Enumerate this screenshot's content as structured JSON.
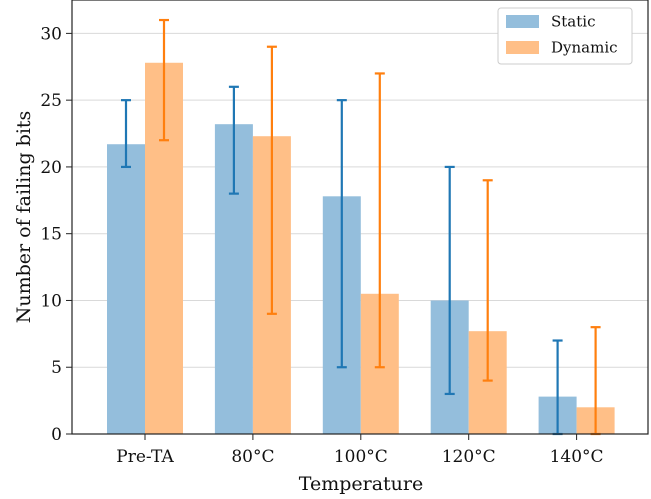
{
  "chart_data": {
    "type": "bar",
    "title": "",
    "xlabel": "Temperature",
    "ylabel": "Number of failing bits",
    "categories": [
      "Pre-TA",
      "80°C",
      "100°C",
      "120°C",
      "140°C"
    ],
    "ylim": [
      0,
      32.5
    ],
    "yticks": [
      0,
      5,
      10,
      15,
      20,
      25,
      30
    ],
    "grid": "y",
    "legend_position": "top-right",
    "series": [
      {
        "name": "Static",
        "values": [
          21.7,
          23.2,
          17.8,
          10.0,
          2.8
        ],
        "error_low": [
          20,
          18,
          5,
          3,
          0
        ],
        "error_high": [
          25,
          26,
          25,
          20,
          7
        ],
        "bar_color": "#94bedc",
        "error_color": "#1f77b4"
      },
      {
        "name": "Dynamic",
        "values": [
          27.8,
          22.3,
          10.5,
          7.7,
          2.0
        ],
        "error_low": [
          22,
          9,
          5,
          4,
          0
        ],
        "error_high": [
          31,
          29,
          27,
          19,
          8
        ],
        "bar_color": "#ffbf87",
        "error_color": "#ff7f0e"
      }
    ]
  }
}
